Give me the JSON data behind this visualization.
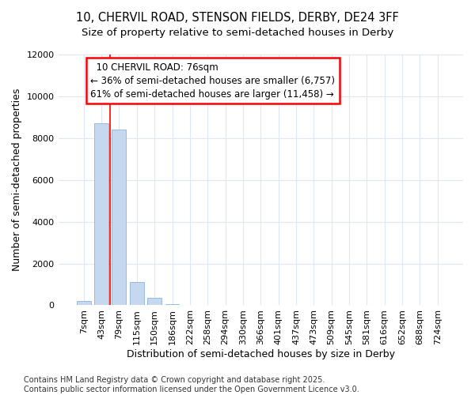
{
  "title_line1": "10, CHERVIL ROAD, STENSON FIELDS, DERBY, DE24 3FF",
  "title_line2": "Size of property relative to semi-detached houses in Derby",
  "xlabel": "Distribution of semi-detached houses by size in Derby",
  "ylabel": "Number of semi-detached properties",
  "categories": [
    "7sqm",
    "43sqm",
    "79sqm",
    "115sqm",
    "150sqm",
    "186sqm",
    "222sqm",
    "258sqm",
    "294sqm",
    "330sqm",
    "366sqm",
    "401sqm",
    "437sqm",
    "473sqm",
    "509sqm",
    "545sqm",
    "581sqm",
    "616sqm",
    "652sqm",
    "688sqm",
    "724sqm"
  ],
  "values": [
    200,
    8700,
    8400,
    1100,
    350,
    50,
    10,
    0,
    0,
    0,
    0,
    0,
    0,
    0,
    0,
    0,
    0,
    0,
    0,
    0,
    0
  ],
  "bar_color": "#c5d8f0",
  "bar_edge_color": "#8ab4d8",
  "ylim": [
    0,
    12000
  ],
  "yticks": [
    0,
    2000,
    4000,
    6000,
    8000,
    10000,
    12000
  ],
  "vline_x_index": 1.5,
  "property_label": "10 CHERVIL ROAD: 76sqm",
  "pct_smaller": 36,
  "n_smaller": 6757,
  "pct_larger": 61,
  "n_larger": 11458,
  "footer_line1": "Contains HM Land Registry data © Crown copyright and database right 2025.",
  "footer_line2": "Contains public sector information licensed under the Open Government Licence v3.0.",
  "background_color": "#ffffff",
  "grid_color": "#dce8f5",
  "title_fontsize": 10.5,
  "subtitle_fontsize": 9.5,
  "axis_label_fontsize": 9,
  "tick_fontsize": 8,
  "annotation_fontsize": 8.5,
  "footer_fontsize": 7
}
